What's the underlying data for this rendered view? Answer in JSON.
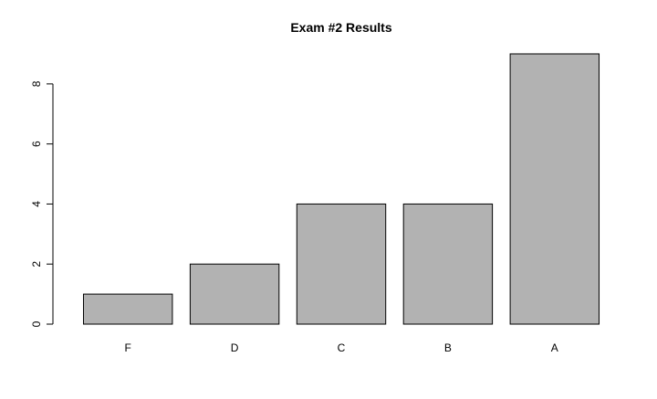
{
  "chart_data": {
    "type": "bar",
    "title": "Exam #2 Results",
    "xlabel": "",
    "ylabel": "",
    "categories": [
      "F",
      "D",
      "C",
      "B",
      "A"
    ],
    "values": [
      1,
      2,
      4,
      4,
      9
    ],
    "ylim": [
      0,
      9
    ],
    "yticks": [
      0,
      2,
      4,
      6,
      8
    ],
    "grid": false,
    "bar_color": "#b2b2b2",
    "bar_border": "#000000"
  }
}
